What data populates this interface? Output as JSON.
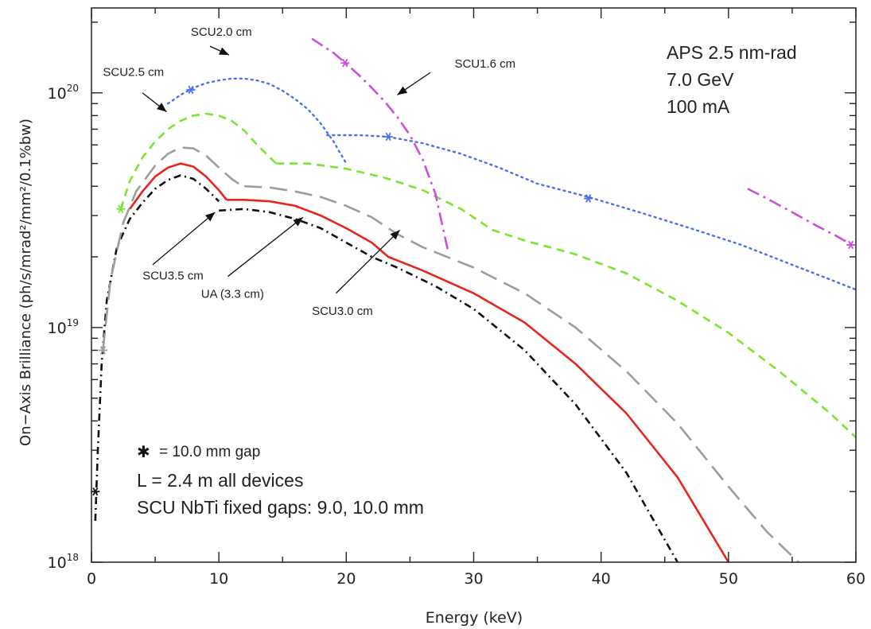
{
  "chart_data": {
    "type": "line",
    "title": "",
    "xlabel": "Energy (keV)",
    "ylabel": "On−Axis Brilliance (ph/s/mrad²/mm²/0.1%bw)",
    "xlim": [
      0,
      60
    ],
    "ylim": [
      1e+18,
      2.3e+20
    ],
    "yscale": "log",
    "x_ticks": [
      0,
      10,
      20,
      30,
      40,
      50,
      60
    ],
    "x_tick_labels": [
      "0",
      "10",
      "20",
      "30",
      "40",
      "50",
      "60"
    ],
    "y_ticks": [
      1e+18,
      1e+19,
      1e+20
    ],
    "y_tick_labels": [
      {
        "base": "10",
        "exp": "18"
      },
      {
        "base": "10",
        "exp": "19"
      },
      {
        "base": "10",
        "exp": "20"
      }
    ],
    "grid": false,
    "series": [
      {
        "name": "SCU3.5 cm",
        "color": "#e8251c",
        "dash": "solid",
        "branches": [
          {
            "x": [
              3,
              4,
              5,
              6,
              7,
              8,
              9,
              10,
              10.6
            ],
            "y": [
              3.2e+19,
              3.8e+19,
              4.4e+19,
              4.8e+19,
              5e+19,
              4.85e+19,
              4.4e+19,
              3.85e+19,
              3.5e+19
            ]
          },
          {
            "x": [
              10.6,
              12,
              14,
              16,
              18,
              20,
              22,
              23.3,
              26,
              30,
              34,
              38,
              42,
              46,
              50
            ],
            "y": [
              3.5e+19,
              3.5e+19,
              3.45e+19,
              3.3e+19,
              3e+19,
              2.65e+19,
              2.3e+19,
              2e+19,
              1.75e+19,
              1.4e+19,
              1.05e+19,
              7e+18,
              4.3e+18,
              2.3e+18,
              1e+18
            ]
          }
        ]
      },
      {
        "name": "UA (3.3 cm)",
        "color": "#111111",
        "dash": "dashdot",
        "branches": [
          {
            "x": [
              0.3,
              0.5,
              0.8,
              1.2,
              2,
              3,
              4,
              5,
              6,
              7,
              8,
              9,
              10
            ],
            "y": [
              1.5e+18,
              3e+18,
              7e+18,
              1.3e+19,
              2.2e+19,
              2.9e+19,
              3.4e+19,
              3.9e+19,
              4.25e+19,
              4.45e+19,
              4.3e+19,
              3.9e+19,
              3.45e+19
            ]
          },
          {
            "x": [
              10,
              12,
              14,
              16,
              18,
              20,
              22,
              24,
              27,
              30,
              34,
              38,
              42,
              46
            ],
            "y": [
              3.15e+19,
              3.2e+19,
              3.1e+19,
              2.9e+19,
              2.65e+19,
              2.3e+19,
              2e+19,
              1.8e+19,
              1.5e+19,
              1.2e+19,
              8e+18,
              4.7e+18,
              2.4e+18,
              1e+18
            ]
          }
        ]
      },
      {
        "name": "SCU3.0 cm",
        "color": "#99a09b",
        "dash": "longdash",
        "branches": [
          {
            "x": [
              0.9,
              1.5,
              2.5,
              3.5,
              5,
              6,
              7,
              8,
              9,
              10,
              11,
              12
            ],
            "y": [
              8e+18,
              1.6e+19,
              2.8e+19,
              3.8e+19,
              4.9e+19,
              5.5e+19,
              5.85e+19,
              5.8e+19,
              5.4e+19,
              4.8e+19,
              4.3e+19,
              3.95e+19
            ]
          },
          {
            "x": [
              12,
              14,
              16,
              18,
              20,
              22,
              24,
              26,
              30,
              34,
              38,
              42,
              46,
              50,
              53,
              55.5
            ],
            "y": [
              4e+19,
              3.95e+19,
              3.8e+19,
              3.6e+19,
              3.3e+19,
              2.95e+19,
              2.5e+19,
              2.2e+19,
              1.8e+19,
              1.4e+19,
              1e+19,
              6.5e+18,
              3.9e+18,
              2.1e+18,
              1.35e+18,
              1e+18
            ]
          }
        ]
      },
      {
        "name": "SCU2.5 cm",
        "color": "#7ce52f",
        "dash": "dashed",
        "branches": [
          {
            "x": [
              2.3,
              3,
              4,
              5,
              6,
              7,
              8,
              9,
              10,
              11,
              12,
              13,
              14.5
            ],
            "y": [
              3.2e+19,
              4.2e+19,
              5.3e+19,
              6.2e+19,
              7e+19,
              7.6e+19,
              8e+19,
              8.15e+19,
              8e+19,
              7.6e+19,
              6.9e+19,
              6e+19,
              5e+19
            ]
          },
          {
            "x": [
              14.5,
              17,
              20,
              23,
              26,
              29,
              31.5,
              34,
              38,
              42,
              46,
              50,
              54,
              58,
              60
            ],
            "y": [
              5e+19,
              5e+19,
              4.75e+19,
              4.35e+19,
              3.85e+19,
              3.2e+19,
              2.6e+19,
              2.35e+19,
              2.05e+19,
              1.7e+19,
              1.3e+19,
              9.5e+18,
              6.5e+18,
              4.3e+18,
              3.4e+18
            ]
          }
        ]
      },
      {
        "name": "SCU2.0 cm",
        "color": "#4a6ff0",
        "dash": "dotted",
        "branches": [
          {
            "x": [
              6,
              7,
              8,
              9,
              10,
              11,
              12,
              13,
              14,
              15,
              16,
              17,
              18,
              19,
              20
            ],
            "y": [
              9e+19,
              9.8e+19,
              1.05e+20,
              1.1e+20,
              1.13e+20,
              1.15e+20,
              1.15e+20,
              1.13e+20,
              1.09e+20,
              1.02e+20,
              9.4e+19,
              8.5e+19,
              7.4e+19,
              6.2e+19,
              5e+19
            ]
          },
          {
            "x": [
              18.5,
              21,
              23.3,
              26,
              29,
              32,
              35,
              39,
              43,
              47,
              51,
              55,
              58,
              60
            ],
            "y": [
              6.6e+19,
              6.6e+19,
              6.5e+19,
              6.1e+19,
              5.5e+19,
              4.8e+19,
              4.1e+19,
              3.6e+19,
              3.1e+19,
              2.65e+19,
              2.25e+19,
              1.85e+19,
              1.6e+19,
              1.45e+19
            ]
          }
        ]
      },
      {
        "name": "SCU1.6 cm",
        "color": "#cc4fdc",
        "dash": "longdashdot",
        "branches": [
          {
            "x": [
              17.3,
              19,
              20,
              21,
              22,
              23,
              24,
              25,
              26,
              27,
              28
            ],
            "y": [
              1.7e+20,
              1.48e+20,
              1.33e+20,
              1.19e+20,
              1.05e+20,
              9.2e+19,
              7.9e+19,
              6.6e+19,
              5.2e+19,
              3.7e+19,
              2.1e+19
            ]
          },
          {
            "x": [
              51.5,
              53,
              55,
              57,
              58.5,
              60
            ],
            "y": [
              3.9e+19,
              3.55e+19,
              3.1e+19,
              2.7e+19,
              2.45e+19,
              2.2e+19
            ]
          }
        ]
      }
    ],
    "markers": [
      {
        "series": "UA (3.3 cm)",
        "x": 0.3,
        "y": 2e+18
      },
      {
        "series": "SCU3.0 cm",
        "x": 0.9,
        "y": 8e+18
      },
      {
        "series": "SCU2.5 cm",
        "x": 2.3,
        "y": 3.2e+19
      },
      {
        "series": "SCU2.0 cm",
        "x": 7.8,
        "y": 1.03e+20
      },
      {
        "series": "SCU2.0 cm",
        "x": 23.3,
        "y": 6.5e+19
      },
      {
        "series": "SCU2.0 cm",
        "x": 39,
        "y": 3.55e+19
      },
      {
        "series": "SCU1.6 cm",
        "x": 19.9,
        "y": 1.34e+20
      },
      {
        "series": "SCU1.6 cm",
        "x": 59.6,
        "y": 2.25e+19
      }
    ],
    "series_labels": [
      {
        "series": "SCU2.0 cm",
        "text": "SCU2.0 cm",
        "tx": 7.8,
        "ty": 1.75e+20,
        "ax1": 9.3,
        "ay1": 1.58e+20,
        "ax2": 10.8,
        "ay2": 1.45e+20
      },
      {
        "series": "SCU1.6 cm",
        "text": "SCU1.6 cm",
        "tx": 28.5,
        "ty": 1.28e+20,
        "ax1": 26.6,
        "ay1": 1.22e+20,
        "ax2": 24.0,
        "ay2": 9.8e+19
      },
      {
        "series": "SCU2.5 cm",
        "text": "SCU2.5 cm",
        "tx": 0.9,
        "ty": 1.18e+20,
        "ax1": 4.0,
        "ay1": 1e+20,
        "ax2": 5.9,
        "ay2": 8.3e+19
      },
      {
        "series": "SCU3.5 cm",
        "text": "SCU3.5 cm",
        "tx": 4.0,
        "ty": 1.6e+19,
        "ax1": 4.8,
        "ay1": 1.85e+19,
        "ax2": 9.7,
        "ay2": 3.1e+19
      },
      {
        "series": "UA (3.3 cm)",
        "text": "UA (3.3 cm)",
        "tx": 8.6,
        "ty": 1.34e+19,
        "ax1": 10.7,
        "ay1": 1.65e+19,
        "ax2": 16.6,
        "ay2": 2.95e+19
      },
      {
        "series": "SCU3.0 cm",
        "text": "SCU3.0 cm",
        "tx": 17.3,
        "ty": 1.13e+19,
        "ax1": 19.2,
        "ay1": 1.4e+19,
        "ax2": 24.2,
        "ay2": 2.6e+19
      }
    ],
    "annotations": {
      "top_right": [
        "APS 2.5 nm-rad",
        "7.0 GeV",
        "100 mA"
      ],
      "marker_symbol": "✱",
      "marker_note": "= 10.0 mm gap",
      "length_note": "L = 2.4 m all devices",
      "gaps_note": "SCU NbTi fixed gaps: 9.0, 10.0 mm"
    }
  }
}
